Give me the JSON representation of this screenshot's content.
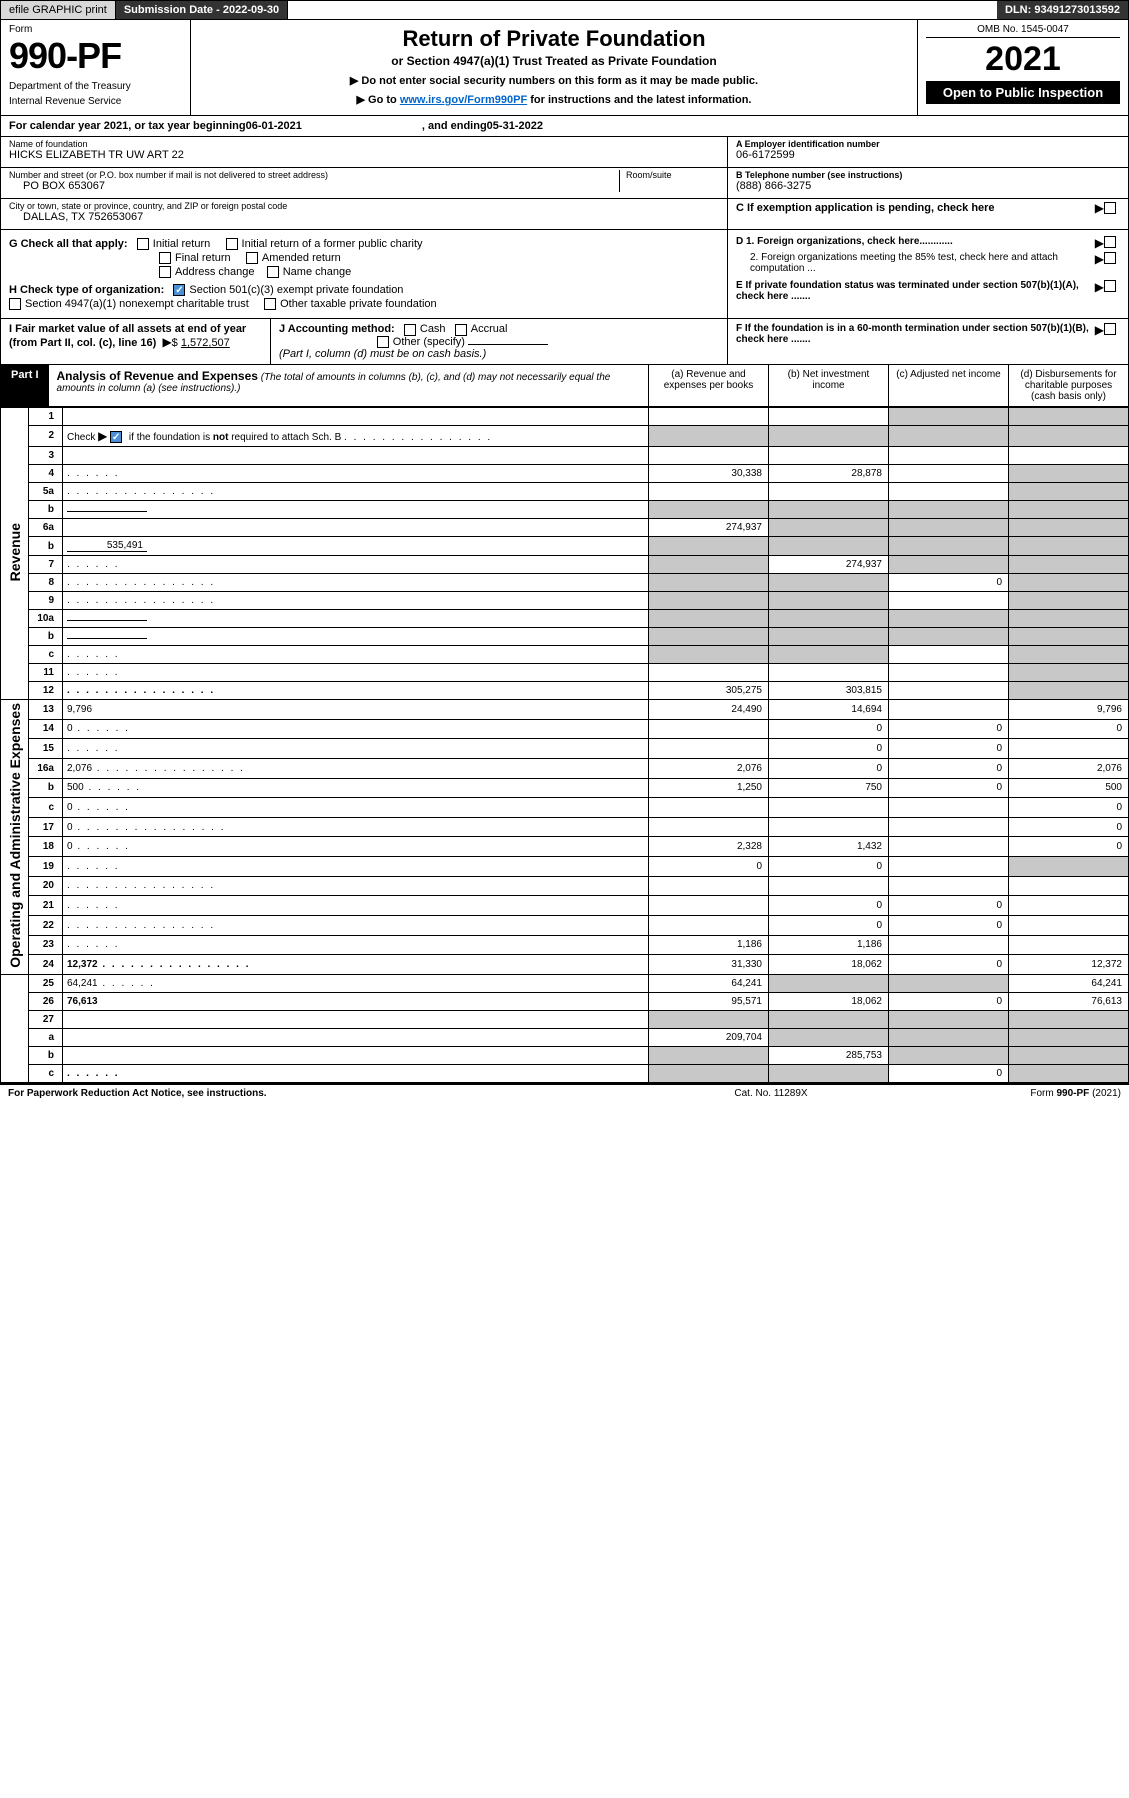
{
  "topbar": {
    "efile": "efile GRAPHIC print",
    "subdate_label": "Submission Date - ",
    "subdate": "2022-09-30",
    "dln_label": "DLN: ",
    "dln": "93491273013592"
  },
  "header": {
    "form_label": "Form",
    "form_no": "990-PF",
    "dept1": "Department of the Treasury",
    "dept2": "Internal Revenue Service",
    "title": "Return of Private Foundation",
    "subtitle": "or Section 4947(a)(1) Trust Treated as Private Foundation",
    "note1": "▶ Do not enter social security numbers on this form as it may be made public.",
    "note2_pre": "▶ Go to ",
    "note2_link": "www.irs.gov/Form990PF",
    "note2_post": " for instructions and the latest information.",
    "omb": "OMB No. 1545-0047",
    "year": "2021",
    "open": "Open to Public Inspection"
  },
  "yearline": {
    "pre": "For calendar year 2021, or tax year beginning ",
    "begin": "06-01-2021",
    "mid": ", and ending ",
    "end": "05-31-2022"
  },
  "ident": {
    "name_label": "Name of foundation",
    "name": "HICKS ELIZABETH TR UW ART 22",
    "addr_label": "Number and street (or P.O. box number if mail is not delivered to street address)",
    "addr": "PO BOX 653067",
    "room_label": "Room/suite",
    "city_label": "City or town, state or province, country, and ZIP or foreign postal code",
    "city": "DALLAS, TX  752653067",
    "einA_label": "A Employer identification number",
    "ein": "06-6172599",
    "telB_label": "B Telephone number (see instructions)",
    "tel": "(888) 866-3275",
    "C_label": "C If exemption application is pending, check here",
    "D1": "D 1. Foreign organizations, check here............",
    "D2": "2. Foreign organizations meeting the 85% test, check here and attach computation ...",
    "E": "E  If private foundation status was terminated under section 507(b)(1)(A), check here .......",
    "F": "F  If the foundation is in a 60-month termination under section 507(b)(1)(B), check here .......",
    "G_label": "G Check all that apply:",
    "G_opts": {
      "initial": "Initial return",
      "initial_former": "Initial return of a former public charity",
      "final": "Final return",
      "amended": "Amended return",
      "addr_change": "Address change",
      "name_change": "Name change"
    },
    "H_label": "H Check type of organization:",
    "H_501c3": "Section 501(c)(3) exempt private foundation",
    "H_4947": "Section 4947(a)(1) nonexempt charitable trust",
    "H_other": "Other taxable private foundation",
    "I_label": "I Fair market value of all assets at end of year (from Part II, col. (c), line 16)",
    "I_val": "1,572,507",
    "J_label": "J Accounting method:",
    "J_cash": "Cash",
    "J_accrual": "Accrual",
    "J_other": "Other (specify)",
    "J_note": "(Part I, column (d) must be on cash basis.)"
  },
  "partI": {
    "label": "Part I",
    "title": "Analysis of Revenue and Expenses",
    "note": " (The total of amounts in columns (b), (c), and (d) may not necessarily equal the amounts in column (a) (see instructions).)",
    "col_a": "(a) Revenue and expenses per books",
    "col_b": "(b) Net investment income",
    "col_c": "(c) Adjusted net income",
    "col_d": "(d) Disbursements for charitable purposes (cash basis only)"
  },
  "sidelabels": {
    "revenue": "Revenue",
    "opex": "Operating and Administrative Expenses"
  },
  "rows": [
    {
      "n": "1",
      "d": "",
      "a": "",
      "b": "",
      "c": "",
      "sd": [
        "",
        "",
        "s",
        "s"
      ]
    },
    {
      "n": "2",
      "d": "",
      "a": "",
      "b": "",
      "c": "",
      "sd": [
        "s",
        "s",
        "s",
        "s"
      ],
      "chk": true
    },
    {
      "n": "3",
      "d": "",
      "a": "",
      "b": "",
      "c": "",
      "sd": [
        "",
        "",
        "",
        ""
      ]
    },
    {
      "n": "4",
      "d": "",
      "a": "30,338",
      "b": "28,878",
      "c": "",
      "sd": [
        "",
        "",
        "",
        "s"
      ],
      "dots": "s"
    },
    {
      "n": "5a",
      "d": "",
      "a": "",
      "b": "",
      "c": "",
      "sd": [
        "",
        "",
        "",
        "s"
      ],
      "dots": "l"
    },
    {
      "n": "b",
      "d": "",
      "a": "",
      "b": "",
      "c": "",
      "sd": [
        "s",
        "s",
        "s",
        "s"
      ],
      "inline": true
    },
    {
      "n": "6a",
      "d": "",
      "a": "274,937",
      "b": "",
      "c": "",
      "sd": [
        "",
        "s",
        "s",
        "s"
      ]
    },
    {
      "n": "b",
      "d": "",
      "a": "",
      "b": "",
      "c": "",
      "sd": [
        "s",
        "s",
        "s",
        "s"
      ],
      "inline": true,
      "inlineval": "535,491"
    },
    {
      "n": "7",
      "d": "",
      "a": "",
      "b": "274,937",
      "c": "",
      "sd": [
        "s",
        "",
        "s",
        "s"
      ],
      "dots": "s"
    },
    {
      "n": "8",
      "d": "",
      "a": "",
      "b": "",
      "c": "0",
      "sd": [
        "s",
        "s",
        "",
        "s"
      ],
      "dots": "l"
    },
    {
      "n": "9",
      "d": "",
      "a": "",
      "b": "",
      "c": "",
      "sd": [
        "s",
        "s",
        "",
        "s"
      ],
      "dots": "l"
    },
    {
      "n": "10a",
      "d": "",
      "a": "",
      "b": "",
      "c": "",
      "sd": [
        "s",
        "s",
        "s",
        "s"
      ],
      "inline": true
    },
    {
      "n": "b",
      "d": "",
      "a": "",
      "b": "",
      "c": "",
      "sd": [
        "s",
        "s",
        "s",
        "s"
      ],
      "inline": true,
      "dots": "s"
    },
    {
      "n": "c",
      "d": "",
      "a": "",
      "b": "",
      "c": "",
      "sd": [
        "s",
        "s",
        "",
        "s"
      ],
      "dots": "s"
    },
    {
      "n": "11",
      "d": "",
      "a": "",
      "b": "",
      "c": "",
      "sd": [
        "",
        "",
        "",
        "s"
      ],
      "dots": "s"
    },
    {
      "n": "12",
      "d": "",
      "a": "305,275",
      "b": "303,815",
      "c": "",
      "sd": [
        "",
        "",
        "",
        "s"
      ],
      "bold": true,
      "dots": "l"
    },
    {
      "n": "13",
      "d": "9,796",
      "a": "24,490",
      "b": "14,694",
      "c": "",
      "sd": [
        "",
        "",
        "",
        ""
      ]
    },
    {
      "n": "14",
      "d": "0",
      "a": "",
      "b": "0",
      "c": "0",
      "sd": [
        "",
        "",
        "",
        ""
      ],
      "dots": "s"
    },
    {
      "n": "15",
      "d": "",
      "a": "",
      "b": "0",
      "c": "0",
      "sd": [
        "",
        "",
        "",
        ""
      ],
      "dots": "s"
    },
    {
      "n": "16a",
      "d": "2,076",
      "a": "2,076",
      "b": "0",
      "c": "0",
      "sd": [
        "",
        "",
        "",
        ""
      ],
      "dots": "l"
    },
    {
      "n": "b",
      "d": "500",
      "a": "1,250",
      "b": "750",
      "c": "0",
      "sd": [
        "",
        "",
        "",
        ""
      ],
      "dots": "s"
    },
    {
      "n": "c",
      "d": "0",
      "a": "",
      "b": "",
      "c": "",
      "sd": [
        "",
        "",
        "",
        ""
      ],
      "dots": "s"
    },
    {
      "n": "17",
      "d": "0",
      "a": "",
      "b": "",
      "c": "",
      "sd": [
        "",
        "",
        "",
        ""
      ],
      "dots": "l"
    },
    {
      "n": "18",
      "d": "0",
      "a": "2,328",
      "b": "1,432",
      "c": "",
      "sd": [
        "",
        "",
        "",
        ""
      ],
      "dots": "s"
    },
    {
      "n": "19",
      "d": "",
      "a": "0",
      "b": "0",
      "c": "",
      "sd": [
        "",
        "",
        "",
        "s"
      ],
      "dots": "s"
    },
    {
      "n": "20",
      "d": "",
      "a": "",
      "b": "",
      "c": "",
      "sd": [
        "",
        "",
        "",
        ""
      ],
      "dots": "l"
    },
    {
      "n": "21",
      "d": "",
      "a": "",
      "b": "0",
      "c": "0",
      "sd": [
        "",
        "",
        "",
        ""
      ],
      "dots": "s"
    },
    {
      "n": "22",
      "d": "",
      "a": "",
      "b": "0",
      "c": "0",
      "sd": [
        "",
        "",
        "",
        ""
      ],
      "dots": "l"
    },
    {
      "n": "23",
      "d": "",
      "a": "1,186",
      "b": "1,186",
      "c": "",
      "sd": [
        "",
        "",
        "",
        ""
      ],
      "dots": "s"
    },
    {
      "n": "24",
      "d": "12,372",
      "a": "31,330",
      "b": "18,062",
      "c": "0",
      "sd": [
        "",
        "",
        "",
        ""
      ],
      "bold": true,
      "dots": "l"
    },
    {
      "n": "25",
      "d": "64,241",
      "a": "64,241",
      "b": "",
      "c": "",
      "sd": [
        "",
        "s",
        "s",
        ""
      ],
      "dots": "s"
    },
    {
      "n": "26",
      "d": "76,613",
      "a": "95,571",
      "b": "18,062",
      "c": "0",
      "sd": [
        "",
        "",
        "",
        ""
      ],
      "bold": true
    },
    {
      "n": "27",
      "d": "",
      "a": "",
      "b": "",
      "c": "",
      "sd": [
        "s",
        "s",
        "s",
        "s"
      ]
    },
    {
      "n": "a",
      "d": "",
      "a": "209,704",
      "b": "",
      "c": "",
      "sd": [
        "",
        "s",
        "s",
        "s"
      ],
      "bold": true
    },
    {
      "n": "b",
      "d": "",
      "a": "",
      "b": "285,753",
      "c": "",
      "sd": [
        "s",
        "",
        "s",
        "s"
      ],
      "bold": true
    },
    {
      "n": "c",
      "d": "",
      "a": "",
      "b": "",
      "c": "0",
      "sd": [
        "s",
        "s",
        "",
        "s"
      ],
      "bold": true,
      "dots": "s"
    }
  ],
  "footer": {
    "left": "For Paperwork Reduction Act Notice, see instructions.",
    "mid": "Cat. No. 11289X",
    "right": "Form 990-PF (2021)"
  },
  "colors": {
    "shade": "#c8c8c8",
    "checkbox": "#4a90d9",
    "link": "#0066cc"
  }
}
